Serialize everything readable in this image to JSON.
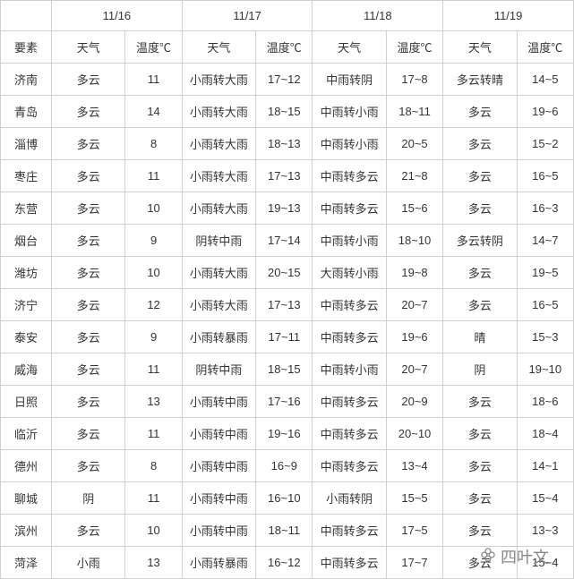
{
  "dates": [
    "11/16",
    "11/17",
    "11/18",
    "11/19"
  ],
  "subheaders": {
    "element": "要素",
    "weather": "天气",
    "temp": "温度℃"
  },
  "rows": [
    {
      "city": "济南",
      "d1w": "多云",
      "d1t": "11",
      "d2w": "小雨转大雨",
      "d2t": "17~12",
      "d3w": "中雨转阴",
      "d3t": "17~8",
      "d4w": "多云转晴",
      "d4t": "14~5"
    },
    {
      "city": "青岛",
      "d1w": "多云",
      "d1t": "14",
      "d2w": "小雨转大雨",
      "d2t": "18~15",
      "d3w": "中雨转小雨",
      "d3t": "18~11",
      "d4w": "多云",
      "d4t": "19~6"
    },
    {
      "city": "淄博",
      "d1w": "多云",
      "d1t": "8",
      "d2w": "小雨转大雨",
      "d2t": "18~13",
      "d3w": "中雨转小雨",
      "d3t": "20~5",
      "d4w": "多云",
      "d4t": "15~2"
    },
    {
      "city": "枣庄",
      "d1w": "多云",
      "d1t": "11",
      "d2w": "小雨转大雨",
      "d2t": "17~13",
      "d3w": "中雨转多云",
      "d3t": "21~8",
      "d4w": "多云",
      "d4t": "16~5"
    },
    {
      "city": "东营",
      "d1w": "多云",
      "d1t": "10",
      "d2w": "小雨转大雨",
      "d2t": "19~13",
      "d3w": "中雨转多云",
      "d3t": "15~6",
      "d4w": "多云",
      "d4t": "16~3"
    },
    {
      "city": "烟台",
      "d1w": "多云",
      "d1t": "9",
      "d2w": "阴转中雨",
      "d2t": "17~14",
      "d3w": "中雨转小雨",
      "d3t": "18~10",
      "d4w": "多云转阴",
      "d4t": "14~7"
    },
    {
      "city": "潍坊",
      "d1w": "多云",
      "d1t": "10",
      "d2w": "小雨转大雨",
      "d2t": "20~15",
      "d3w": "大雨转小雨",
      "d3t": "19~8",
      "d4w": "多云",
      "d4t": "19~5"
    },
    {
      "city": "济宁",
      "d1w": "多云",
      "d1t": "12",
      "d2w": "小雨转大雨",
      "d2t": "17~13",
      "d3w": "中雨转多云",
      "d3t": "20~7",
      "d4w": "多云",
      "d4t": "16~5"
    },
    {
      "city": "泰安",
      "d1w": "多云",
      "d1t": "9",
      "d2w": "小雨转暴雨",
      "d2t": "17~11",
      "d3w": "中雨转多云",
      "d3t": "19~6",
      "d4w": "晴",
      "d4t": "15~3"
    },
    {
      "city": "威海",
      "d1w": "多云",
      "d1t": "11",
      "d2w": "阴转中雨",
      "d2t": "18~15",
      "d3w": "中雨转小雨",
      "d3t": "20~7",
      "d4w": "阴",
      "d4t": "19~10"
    },
    {
      "city": "日照",
      "d1w": "多云",
      "d1t": "13",
      "d2w": "小雨转中雨",
      "d2t": "17~16",
      "d3w": "中雨转多云",
      "d3t": "20~9",
      "d4w": "多云",
      "d4t": "18~6"
    },
    {
      "city": "临沂",
      "d1w": "多云",
      "d1t": "11",
      "d2w": "小雨转中雨",
      "d2t": "19~16",
      "d3w": "中雨转多云",
      "d3t": "20~10",
      "d4w": "多云",
      "d4t": "18~4"
    },
    {
      "city": "德州",
      "d1w": "多云",
      "d1t": "8",
      "d2w": "小雨转中雨",
      "d2t": "16~9",
      "d3w": "中雨转多云",
      "d3t": "13~4",
      "d4w": "多云",
      "d4t": "14~1"
    },
    {
      "city": "聊城",
      "d1w": "阴",
      "d1t": "11",
      "d2w": "小雨转中雨",
      "d2t": "16~10",
      "d3w": "小雨转阴",
      "d3t": "15~5",
      "d4w": "多云",
      "d4t": "15~4"
    },
    {
      "city": "滨州",
      "d1w": "多云",
      "d1t": "10",
      "d2w": "小雨转中雨",
      "d2t": "18~11",
      "d3w": "中雨转多云",
      "d3t": "17~5",
      "d4w": "多云",
      "d4t": "13~3"
    },
    {
      "city": "菏泽",
      "d1w": "小雨",
      "d1t": "13",
      "d2w": "小雨转暴雨",
      "d2t": "16~12",
      "d3w": "中雨转多云",
      "d3t": "17~7",
      "d4w": "多云",
      "d4t": "15~4"
    }
  ],
  "watermark": "四叶文",
  "colors": {
    "border": "#d0d0d0",
    "text": "#333333",
    "bg": "#ffffff"
  }
}
